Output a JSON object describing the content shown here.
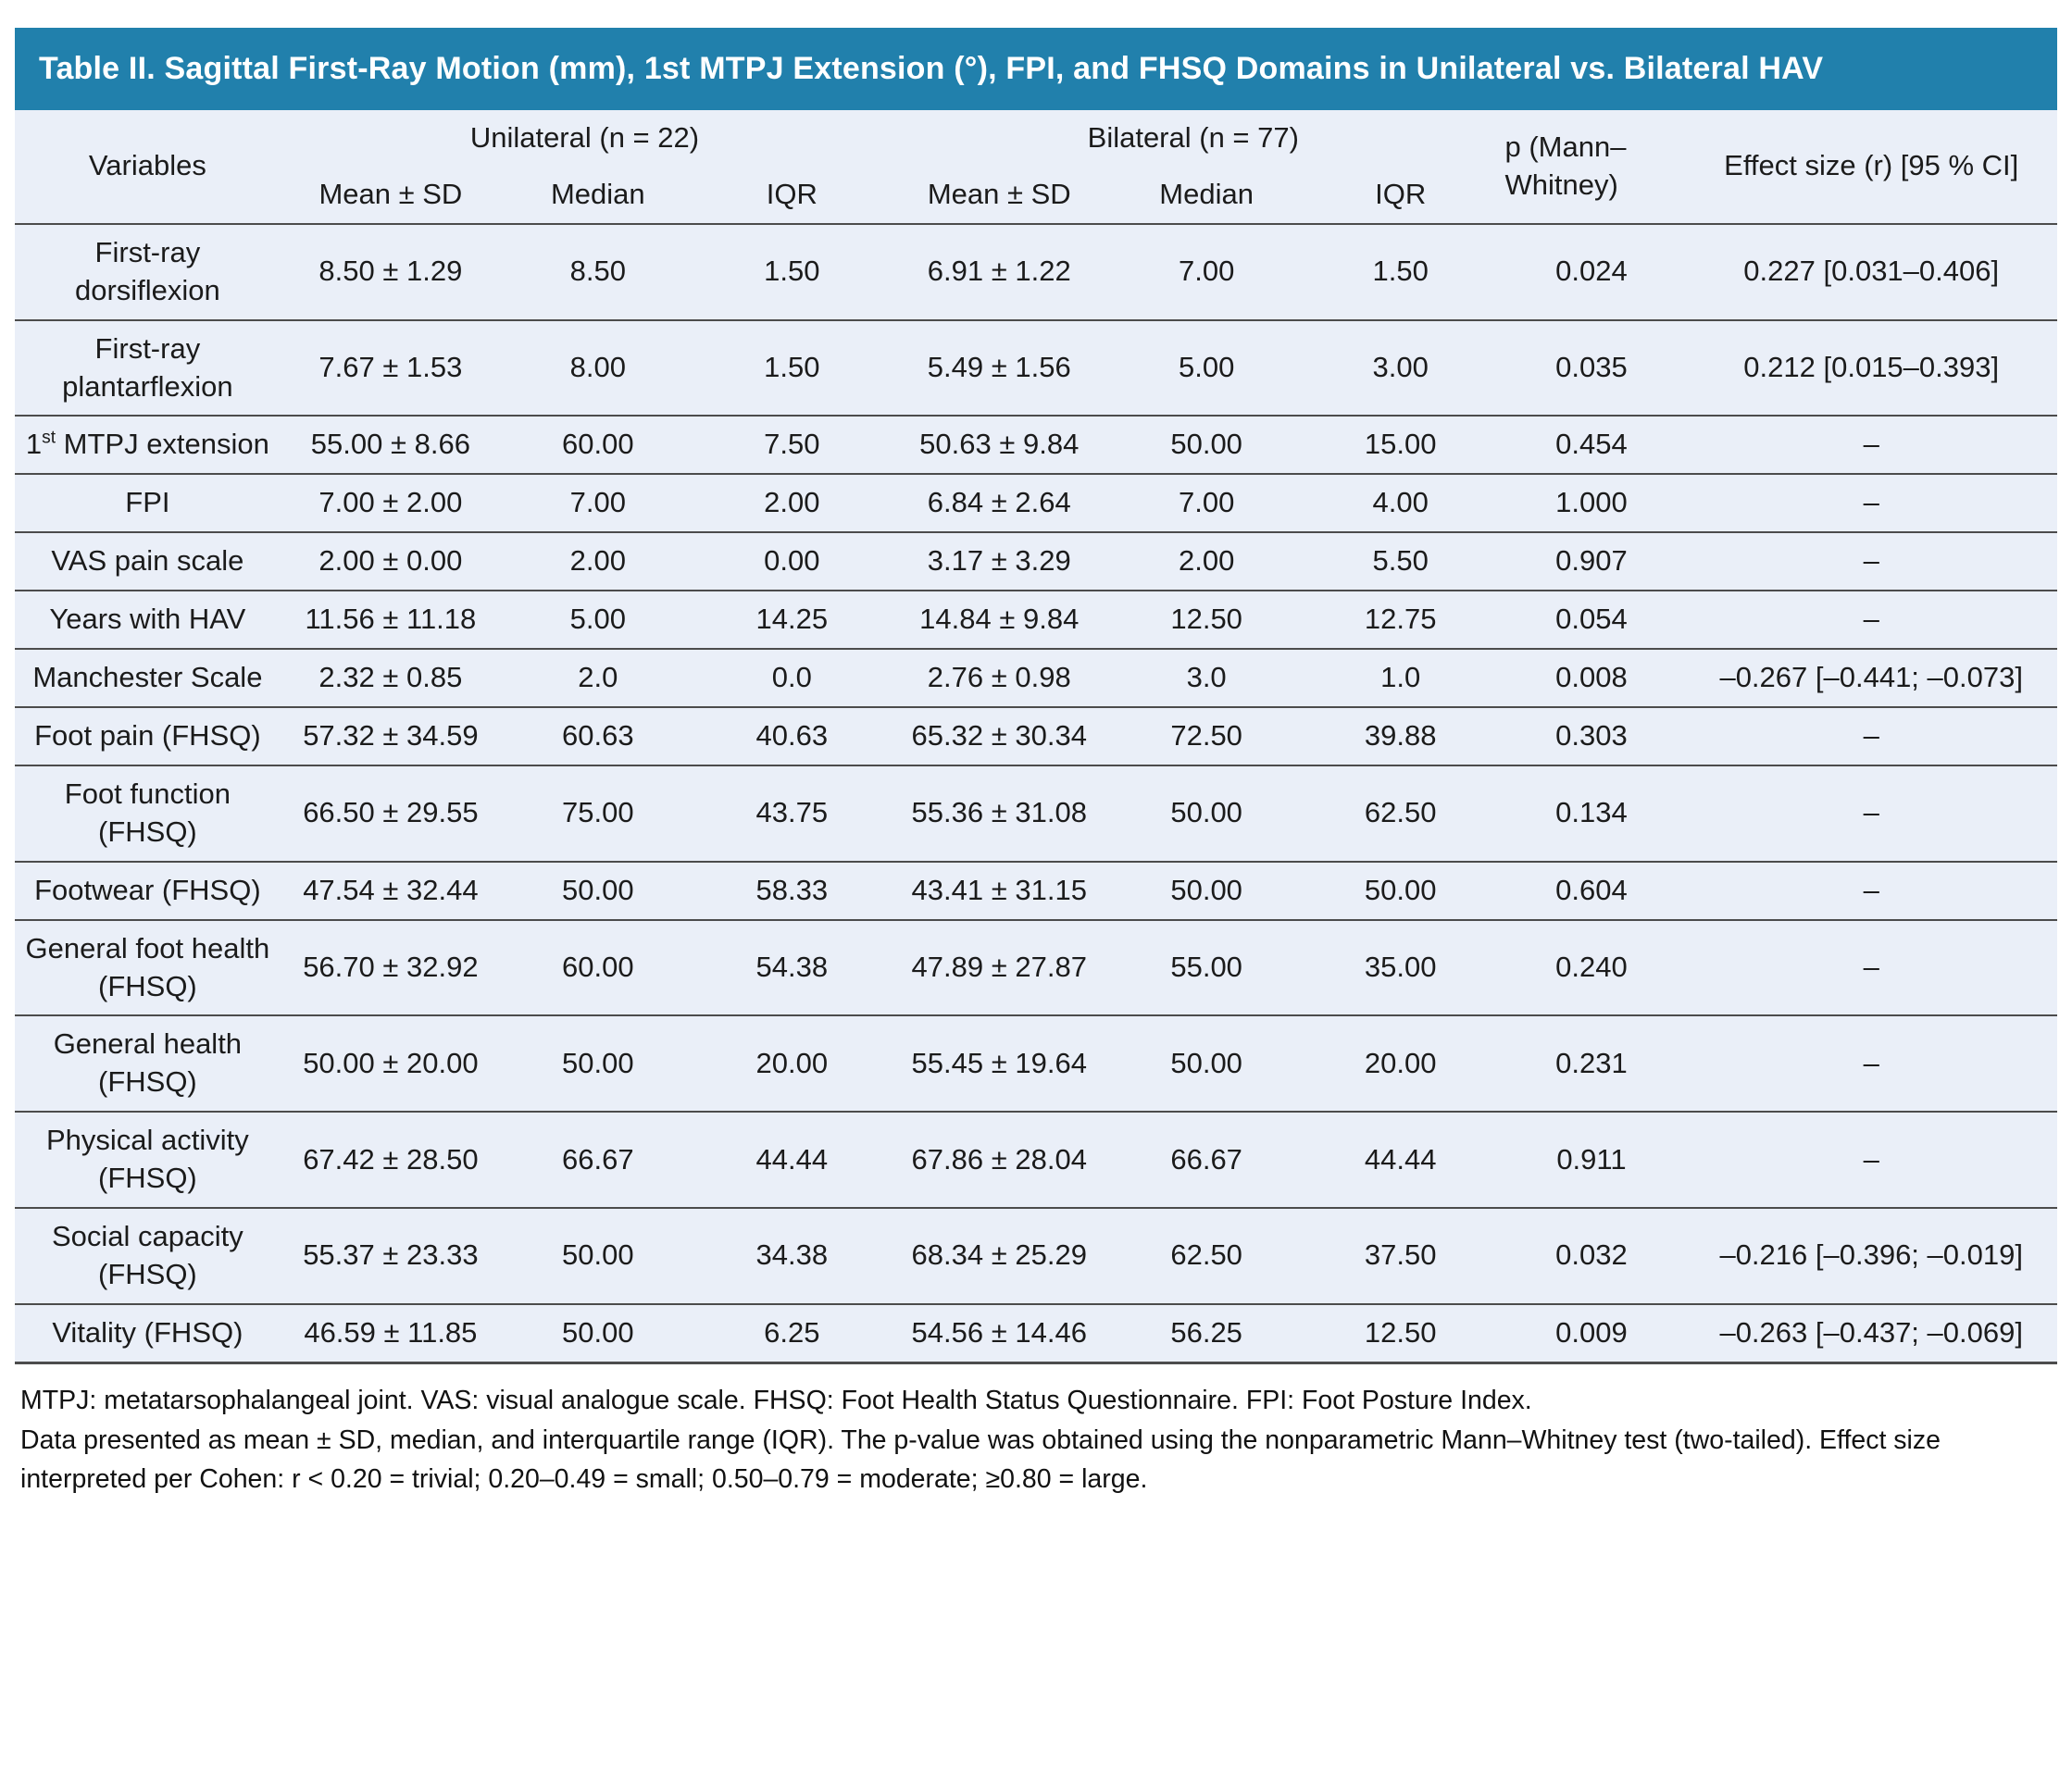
{
  "title": "Table II. Sagittal First-Ray Motion (mm), 1st MTPJ Extension (°), FPI, and FHSQ Domains in Unilateral vs. Bilateral HAV",
  "colors": {
    "title_bar_bg": "#2180AC",
    "title_text": "#FFFFFF",
    "table_bg": "#EAEFF8",
    "divider": "#4C4C4C",
    "text": "#1B1B1B"
  },
  "table": {
    "col_variables": "Variables",
    "group_unilateral": "Unilateral (n = 22)",
    "group_bilateral": "Bilateral (n = 77)",
    "col_p": "p (Mann–Whitney)",
    "col_effect": "Effect size (r) [95 % CI]",
    "subheaders": [
      "Mean ± SD",
      "Median",
      "IQR",
      "Mean ± SD",
      "Median",
      "IQR"
    ],
    "rows": [
      {
        "variable": "First-ray dorsiflexion",
        "uni_mean_sd": "8.50 ± 1.29",
        "uni_median": "8.50",
        "uni_iqr": "1.50",
        "bi_mean_sd": "6.91 ± 1.22",
        "bi_median": "7.00",
        "bi_iqr": "1.50",
        "p": "0.024",
        "p_bold": true,
        "effect": "0.227 [0.031–0.406]"
      },
      {
        "variable": "First-ray plantarflexion",
        "uni_mean_sd": "7.67 ± 1.53",
        "uni_median": "8.00",
        "uni_iqr": "1.50",
        "bi_mean_sd": "5.49 ± 1.56",
        "bi_median": "5.00",
        "bi_iqr": "3.00",
        "p": "0.035",
        "p_bold": true,
        "effect": "0.212 [0.015–0.393]"
      },
      {
        "variable": "1st MTPJ extension",
        "variable_sup": true,
        "uni_mean_sd": "55.00 ± 8.66",
        "uni_median": "60.00",
        "uni_iqr": "7.50",
        "bi_mean_sd": "50.63 ± 9.84",
        "bi_median": "50.00",
        "bi_iqr": "15.00",
        "p": "0.454",
        "p_bold": false,
        "effect": "–"
      },
      {
        "variable": "FPI",
        "uni_mean_sd": "7.00 ± 2.00",
        "uni_median": "7.00",
        "uni_iqr": "2.00",
        "bi_mean_sd": "6.84 ± 2.64",
        "bi_median": "7.00",
        "bi_iqr": "4.00",
        "p": "1.000",
        "p_bold": false,
        "effect": "–"
      },
      {
        "variable": "VAS pain scale",
        "uni_mean_sd": "2.00 ± 0.00",
        "uni_median": "2.00",
        "uni_iqr": "0.00",
        "bi_mean_sd": "3.17 ± 3.29",
        "bi_median": "2.00",
        "bi_iqr": "5.50",
        "p": "0.907",
        "p_bold": false,
        "effect": "–"
      },
      {
        "variable": "Years with HAV",
        "uni_mean_sd": "11.56 ± 11.18",
        "uni_median": "5.00",
        "uni_iqr": "14.25",
        "bi_mean_sd": "14.84 ± 9.84",
        "bi_median": "12.50",
        "bi_iqr": "12.75",
        "p": "0.054",
        "p_bold": false,
        "effect": "–"
      },
      {
        "variable": "Manchester Scale",
        "uni_mean_sd": "2.32 ± 0.85",
        "uni_median": "2.0",
        "uni_iqr": "0.0",
        "bi_mean_sd": "2.76 ± 0.98",
        "bi_median": "3.0",
        "bi_iqr": "1.0",
        "p": "0.008",
        "p_bold": true,
        "effect": "–0.267 [–0.441; –0.073]"
      },
      {
        "variable": "Foot pain (FHSQ)",
        "uni_mean_sd": "57.32 ± 34.59",
        "uni_median": "60.63",
        "uni_iqr": "40.63",
        "bi_mean_sd": "65.32 ± 30.34",
        "bi_median": "72.50",
        "bi_iqr": "39.88",
        "p": "0.303",
        "p_bold": false,
        "effect": "–"
      },
      {
        "variable": "Foot function (FHSQ)",
        "uni_mean_sd": "66.50 ± 29.55",
        "uni_median": "75.00",
        "uni_iqr": "43.75",
        "bi_mean_sd": "55.36 ± 31.08",
        "bi_median": "50.00",
        "bi_iqr": "62.50",
        "p": "0.134",
        "p_bold": false,
        "effect": "–"
      },
      {
        "variable": "Footwear (FHSQ)",
        "uni_mean_sd": "47.54 ± 32.44",
        "uni_median": "50.00",
        "uni_iqr": "58.33",
        "bi_mean_sd": "43.41 ± 31.15",
        "bi_median": "50.00",
        "bi_iqr": "50.00",
        "p": "0.604",
        "p_bold": false,
        "effect": "–"
      },
      {
        "variable": "General foot health (FHSQ)",
        "uni_mean_sd": "56.70 ± 32.92",
        "uni_median": "60.00",
        "uni_iqr": "54.38",
        "bi_mean_sd": "47.89 ± 27.87",
        "bi_median": "55.00",
        "bi_iqr": "35.00",
        "p": "0.240",
        "p_bold": false,
        "effect": "–"
      },
      {
        "variable": "General health (FHSQ)",
        "uni_mean_sd": "50.00 ± 20.00",
        "uni_median": "50.00",
        "uni_iqr": "20.00",
        "bi_mean_sd": "55.45 ± 19.64",
        "bi_median": "50.00",
        "bi_iqr": "20.00",
        "p": "0.231",
        "p_bold": false,
        "effect": "–"
      },
      {
        "variable": "Physical activity (FHSQ)",
        "uni_mean_sd": "67.42 ± 28.50",
        "uni_median": "66.67",
        "uni_iqr": "44.44",
        "bi_mean_sd": "67.86 ± 28.04",
        "bi_median": "66.67",
        "bi_iqr": "44.44",
        "p": "0.911",
        "p_bold": false,
        "effect": "–"
      },
      {
        "variable": "Social capacity (FHSQ)",
        "uni_mean_sd": "55.37 ± 23.33",
        "uni_median": "50.00",
        "uni_iqr": "34.38",
        "bi_mean_sd": "68.34 ± 25.29",
        "bi_median": "62.50",
        "bi_iqr": "37.50",
        "p": "0.032",
        "p_bold": true,
        "effect": "–0.216 [–0.396; –0.019]"
      },
      {
        "variable": "Vitality (FHSQ)",
        "uni_mean_sd": "46.59 ± 11.85",
        "uni_median": "50.00",
        "uni_iqr": "6.25",
        "bi_mean_sd": "54.56 ± 14.46",
        "bi_median": "56.25",
        "bi_iqr": "12.50",
        "p": "0.009",
        "p_bold": true,
        "effect": "–0.263 [–0.437; –0.069]"
      }
    ]
  },
  "footnotes": [
    "MTPJ: metatarsophalangeal joint. VAS: visual analogue scale. FHSQ: Foot Health Status Questionnaire. FPI: Foot Posture Index.",
    "Data presented as mean ± SD, median, and interquartile range (IQR). The p-value was obtained using the nonparametric Mann–Whitney test (two-tailed). Effect size interpreted per Cohen: r < 0.20 = trivial; 0.20–0.49 = small; 0.50–0.79 = moderate; ≥0.80 = large."
  ]
}
